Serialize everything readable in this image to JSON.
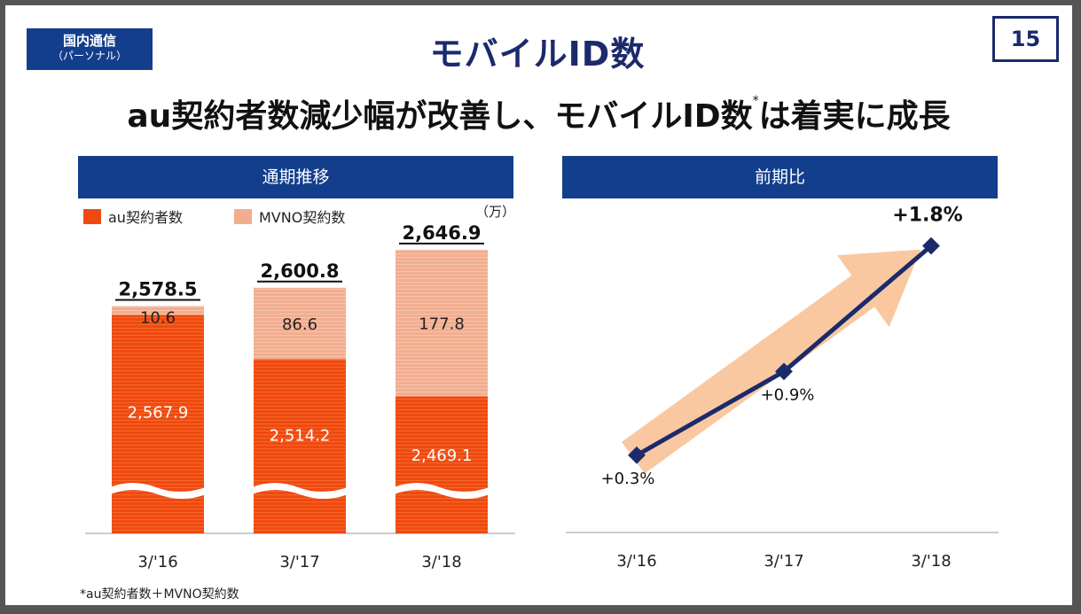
{
  "segment": {
    "line1": "国内通信",
    "line2": "（パーソナル）"
  },
  "title": "モバイルID数",
  "page_number": "15",
  "subtitle": {
    "main": "au契約者数減少幅が改善し、モバイルID数",
    "mark": "*",
    "tail": "は着実に成長"
  },
  "left_panel": {
    "header": "通期推移",
    "legend": [
      {
        "label": "au契約者数",
        "color": "#ee4a10"
      },
      {
        "label": "MVNO契約数",
        "color": "#f2ad8f"
      }
    ],
    "unit": "（万）"
  },
  "right_panel": {
    "header": "前期比"
  },
  "footnote": "*au契約者数＋MVNO契約数",
  "chart_data": [
    {
      "type": "bar",
      "stacked": true,
      "categories": [
        "3/'16",
        "3/'17",
        "3/'18"
      ],
      "series": [
        {
          "name": "au契約者数",
          "values": [
            2567.9,
            2514.2,
            2469.1
          ],
          "labels": [
            "2,567.9",
            "2,514.2",
            "2,469.1"
          ],
          "color": "#ee4a10"
        },
        {
          "name": "MVNO契約数",
          "values": [
            10.6,
            86.6,
            177.8
          ],
          "labels": [
            "10.6",
            "86.6",
            "177.8"
          ],
          "color": "#f2ad8f"
        }
      ],
      "totals": [
        2578.5,
        2600.8,
        2646.9
      ],
      "total_labels": [
        "2,578.5",
        "2,600.8",
        "2,646.9"
      ],
      "axis_break": true,
      "unit": "万"
    },
    {
      "type": "line",
      "categories": [
        "3/'16",
        "3/'17",
        "3/'18"
      ],
      "values": [
        0.3,
        0.9,
        1.8
      ],
      "labels": [
        "+0.3%",
        "+0.9%",
        "+1.8%"
      ],
      "ylim": [
        0,
        2.0
      ],
      "line_color": "#1b2a6b",
      "arrow_color": "#fac8a0"
    }
  ]
}
